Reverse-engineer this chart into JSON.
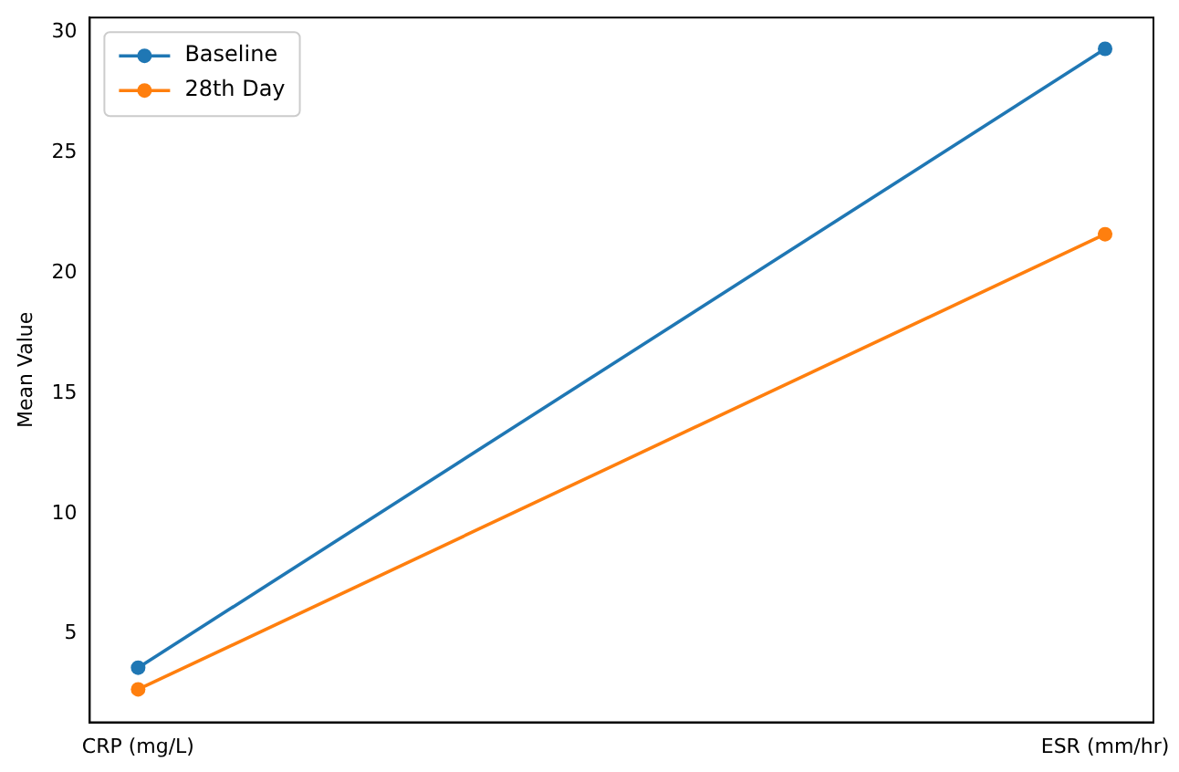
{
  "chart_data": {
    "type": "line",
    "ylabel": "Mean Value",
    "categories": [
      "CRP (mg/L)",
      "ESR (mm/hr)"
    ],
    "series": [
      {
        "name": "Baseline",
        "color": "#1f77b4",
        "values": [
          3.6,
          29.3
        ]
      },
      {
        "name": "28th Day",
        "color": "#ff7f0e",
        "values": [
          2.7,
          21.6
        ]
      }
    ],
    "ylim": [
      1.33,
      30.6
    ],
    "yticks": [
      5,
      10,
      15,
      20,
      25,
      30
    ],
    "grid": false,
    "legend": "top left",
    "marker": "circle",
    "line_style": "solid"
  }
}
